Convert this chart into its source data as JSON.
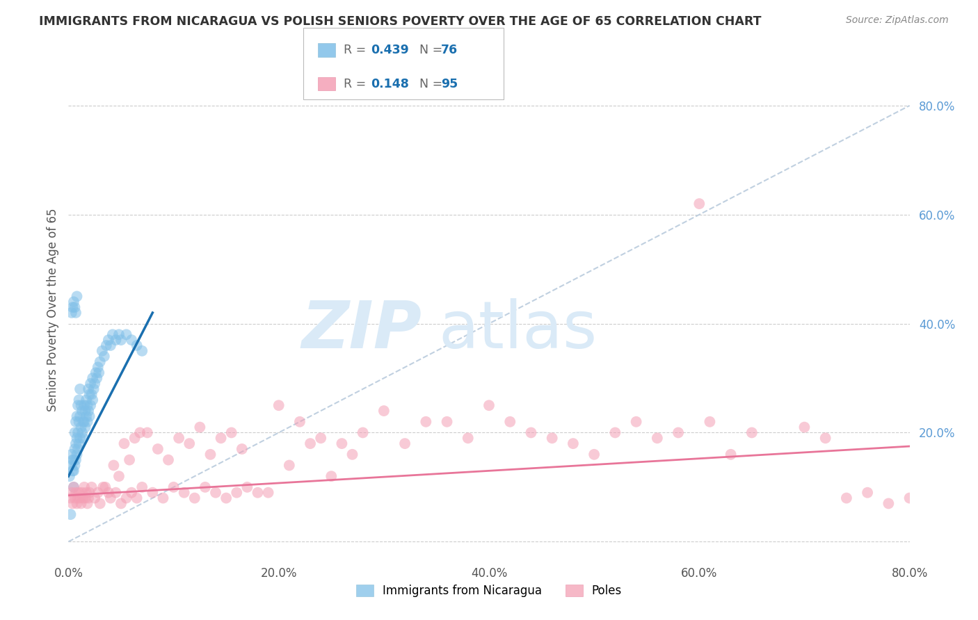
{
  "title": "IMMIGRANTS FROM NICARAGUA VS POLISH SENIORS POVERTY OVER THE AGE OF 65 CORRELATION CHART",
  "source": "Source: ZipAtlas.com",
  "ylabel": "Seniors Poverty Over the Age of 65",
  "xlim": [
    0,
    0.8
  ],
  "ylim": [
    -0.03,
    0.88
  ],
  "xticks": [
    0.0,
    0.2,
    0.4,
    0.6,
    0.8
  ],
  "yticks_right": [
    0.2,
    0.4,
    0.6,
    0.8
  ],
  "xtick_labels": [
    "0.0%",
    "20.0%",
    "40.0%",
    "60.0%",
    "80.0%"
  ],
  "ytick_labels": [
    "20.0%",
    "40.0%",
    "60.0%",
    "80.0%"
  ],
  "series1_label": "Immigrants from Nicaragua",
  "series1_color": "#7fbfe8",
  "series1_R": 0.439,
  "series1_N": 76,
  "series2_label": "Poles",
  "series2_color": "#f4a0b5",
  "series2_R": 0.148,
  "series2_N": 95,
  "background_color": "#ffffff",
  "grid_color": "#cccccc",
  "title_color": "#333333",
  "right_axis_color": "#5b9bd5",
  "watermark_color": "#daeaf7",
  "series1_x": [
    0.001,
    0.002,
    0.003,
    0.003,
    0.004,
    0.004,
    0.005,
    0.005,
    0.005,
    0.006,
    0.006,
    0.006,
    0.007,
    0.007,
    0.007,
    0.008,
    0.008,
    0.008,
    0.009,
    0.009,
    0.009,
    0.01,
    0.01,
    0.01,
    0.011,
    0.011,
    0.011,
    0.012,
    0.012,
    0.013,
    0.013,
    0.014,
    0.014,
    0.015,
    0.015,
    0.016,
    0.016,
    0.017,
    0.017,
    0.018,
    0.018,
    0.019,
    0.019,
    0.02,
    0.02,
    0.021,
    0.021,
    0.022,
    0.023,
    0.023,
    0.024,
    0.025,
    0.026,
    0.027,
    0.028,
    0.029,
    0.03,
    0.032,
    0.034,
    0.036,
    0.038,
    0.04,
    0.042,
    0.045,
    0.048,
    0.05,
    0.055,
    0.06,
    0.065,
    0.07,
    0.003,
    0.004,
    0.005,
    0.006,
    0.007,
    0.008
  ],
  "series1_y": [
    0.12,
    0.05,
    0.14,
    0.16,
    0.13,
    0.15,
    0.1,
    0.13,
    0.15,
    0.14,
    0.17,
    0.2,
    0.15,
    0.18,
    0.22,
    0.16,
    0.19,
    0.23,
    0.17,
    0.2,
    0.25,
    0.18,
    0.22,
    0.26,
    0.19,
    0.23,
    0.28,
    0.21,
    0.25,
    0.2,
    0.24,
    0.19,
    0.22,
    0.22,
    0.25,
    0.21,
    0.24,
    0.23,
    0.26,
    0.22,
    0.25,
    0.24,
    0.28,
    0.23,
    0.27,
    0.25,
    0.29,
    0.27,
    0.26,
    0.3,
    0.28,
    0.29,
    0.31,
    0.3,
    0.32,
    0.31,
    0.33,
    0.35,
    0.34,
    0.36,
    0.37,
    0.36,
    0.38,
    0.37,
    0.38,
    0.37,
    0.38,
    0.37,
    0.36,
    0.35,
    0.42,
    0.43,
    0.44,
    0.43,
    0.42,
    0.45
  ],
  "series2_x": [
    0.002,
    0.003,
    0.004,
    0.005,
    0.006,
    0.007,
    0.008,
    0.009,
    0.01,
    0.011,
    0.012,
    0.013,
    0.014,
    0.015,
    0.016,
    0.017,
    0.018,
    0.019,
    0.02,
    0.022,
    0.025,
    0.028,
    0.03,
    0.035,
    0.04,
    0.045,
    0.05,
    0.055,
    0.06,
    0.065,
    0.07,
    0.08,
    0.09,
    0.1,
    0.11,
    0.12,
    0.13,
    0.14,
    0.15,
    0.16,
    0.17,
    0.18,
    0.2,
    0.22,
    0.24,
    0.26,
    0.28,
    0.3,
    0.32,
    0.34,
    0.36,
    0.38,
    0.4,
    0.42,
    0.44,
    0.46,
    0.48,
    0.5,
    0.52,
    0.54,
    0.56,
    0.58,
    0.6,
    0.61,
    0.63,
    0.65,
    0.7,
    0.72,
    0.74,
    0.76,
    0.78,
    0.8,
    0.033,
    0.038,
    0.043,
    0.048,
    0.053,
    0.058,
    0.063,
    0.068,
    0.075,
    0.085,
    0.095,
    0.105,
    0.115,
    0.125,
    0.135,
    0.145,
    0.155,
    0.165,
    0.19,
    0.21,
    0.23,
    0.25,
    0.27
  ],
  "series2_y": [
    0.08,
    0.09,
    0.07,
    0.1,
    0.08,
    0.09,
    0.07,
    0.08,
    0.09,
    0.08,
    0.07,
    0.09,
    0.08,
    0.1,
    0.08,
    0.09,
    0.07,
    0.08,
    0.09,
    0.1,
    0.08,
    0.09,
    0.07,
    0.1,
    0.08,
    0.09,
    0.07,
    0.08,
    0.09,
    0.08,
    0.1,
    0.09,
    0.08,
    0.1,
    0.09,
    0.08,
    0.1,
    0.09,
    0.08,
    0.09,
    0.1,
    0.09,
    0.25,
    0.22,
    0.19,
    0.18,
    0.2,
    0.24,
    0.18,
    0.22,
    0.22,
    0.19,
    0.25,
    0.22,
    0.2,
    0.19,
    0.18,
    0.16,
    0.2,
    0.22,
    0.19,
    0.2,
    0.62,
    0.22,
    0.16,
    0.2,
    0.21,
    0.19,
    0.08,
    0.09,
    0.07,
    0.08,
    0.1,
    0.09,
    0.14,
    0.12,
    0.18,
    0.15,
    0.19,
    0.2,
    0.2,
    0.17,
    0.15,
    0.19,
    0.18,
    0.21,
    0.16,
    0.19,
    0.2,
    0.17,
    0.09,
    0.14,
    0.18,
    0.12,
    0.16
  ],
  "trend1_x_start": 0.0,
  "trend1_x_end": 0.08,
  "trend1_y_start": 0.12,
  "trend1_y_end": 0.42,
  "trend2_x_start": 0.0,
  "trend2_x_end": 0.8,
  "trend2_y_start": 0.085,
  "trend2_y_end": 0.175
}
